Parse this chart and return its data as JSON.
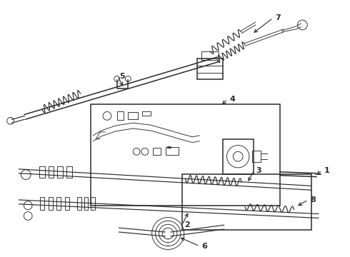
{
  "bg_color": "#ffffff",
  "line_color": "#2a2a2a",
  "figsize": [
    4.9,
    3.6
  ],
  "dpi": 100,
  "lw_main": 1.1,
  "lw_thin": 0.65,
  "lw_med": 0.85
}
